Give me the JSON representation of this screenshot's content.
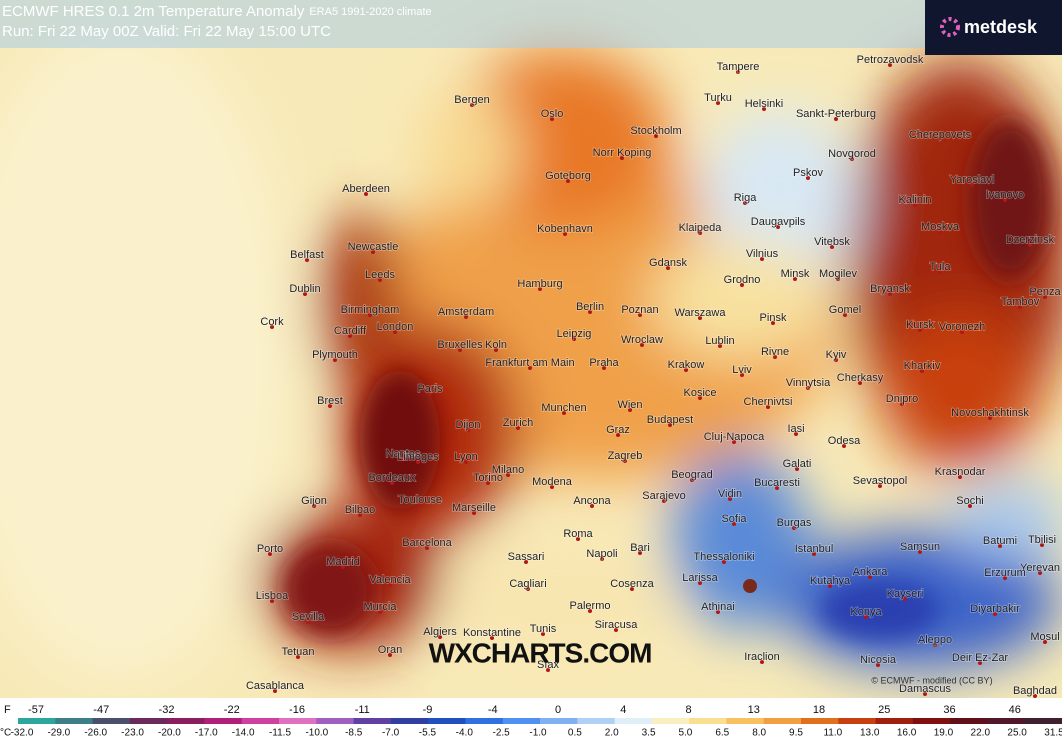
{
  "header": {
    "title": "ECMWF HRES 0.1 2m Temperature Anomaly",
    "subtitle": "ERA5 1991-2020 climate",
    "run": "Run: Fri 22 May 00Z Valid: Fri 22 May 15:00 UTC",
    "logo": "metdesk"
  },
  "watermark": "WXCHARTS.COM",
  "credit": "© ECMWF - modified (CC BY)",
  "cities": [
    "Tampere",
    "Petrozavodsk",
    "Bergen",
    "Oslo",
    "Turku",
    "Helsinki",
    "Sankt-Peterburg",
    "Stockholm",
    "Cherepovets",
    "Norr Koping",
    "Novgorod",
    "Aberdeen",
    "Goteborg",
    "Pskov",
    "Yaroslavl",
    "Ivanovo",
    "Kalinin",
    "Riga",
    "Daugavpils",
    "Newcastle",
    "Klaipeda",
    "Kobenhavn",
    "Moskva",
    "Vitebsk",
    "Vilnius",
    "Belfast",
    "Dzerzinsk",
    "Gdansk",
    "Minsk",
    "Mogilev",
    "Grodno",
    "Tula",
    "Leeds",
    "Hamburg",
    "Dublin",
    "Bryansk",
    "Penza",
    "Birmingham",
    "Amsterdam",
    "Berlin",
    "Poznan",
    "Warszawa",
    "Tambov",
    "Gomel",
    "Cork",
    "Cardiff",
    "London",
    "Leipzig",
    "Pinsk",
    "Kursk",
    "Voronezh",
    "Bruxelles",
    "Koln",
    "Wroclaw",
    "Lublin",
    "Plymouth",
    "Frankfurt am Main",
    "Praha",
    "Krakow",
    "Rivne",
    "Kyiv",
    "Lviv",
    "Kharkiv",
    "Paris",
    "Vinnytsia",
    "Cherkasy",
    "Kosice",
    "Brest",
    "Munchen",
    "Wien",
    "Dnipro",
    "Chernivtsi",
    "Novoshakhtinsk",
    "Budapest",
    "Graz",
    "Dijon",
    "Zurich",
    "Cluj-Napoca",
    "Iasi",
    "Odesa",
    "Lyon",
    "Zagreb",
    "Nantes",
    "Limoges",
    "Galati",
    "Krasnodar",
    "Beograd",
    "Milano",
    "Torino",
    "Bucaresti",
    "Sevastopol",
    "Bordeaux",
    "Toulouse",
    "Modena",
    "Marseille",
    "Gijon",
    "Bilbao",
    "Sochi",
    "Vidin",
    "Ancona",
    "Sarajevo",
    "Sofia",
    "Barcelona",
    "Roma",
    "Burgas",
    "Bari",
    "Istanbul",
    "Batumi",
    "Samsun",
    "Tbilisi",
    "Porto",
    "Napoli",
    "Sassari",
    "Thessaloniki",
    "Madrid",
    "Ankara",
    "Yerevan",
    "Erzurum",
    "Valencia",
    "Cagliari",
    "Cosenza",
    "Larissa",
    "Kutahya",
    "Lisboa",
    "Kayseri",
    "Palermo",
    "Murcia",
    "Athinai",
    "Konya",
    "Diyarbakir",
    "Sevilla",
    "Siracusa",
    "Algiers",
    "Tunis",
    "Konstantine",
    "Aleppo",
    "Mosul",
    "Tetuan",
    "Oran",
    "Sfax",
    "Iraclion",
    "Nicosia",
    "Deir Ez-Zar",
    "Casablanca",
    "Damascus",
    "Baghdad"
  ],
  "legend": {
    "f_unit": "F",
    "c_unit": "°C",
    "f_labels": [
      "-57",
      "-47",
      "-32",
      "-22",
      "-16",
      "-11",
      "-9",
      "-4",
      "0",
      "4",
      "8",
      "13",
      "18",
      "25",
      "36",
      "46"
    ],
    "c_labels": [
      "-32.0",
      "-29.0",
      "-26.0",
      "-23.0",
      "-20.0",
      "-17.0",
      "-14.0",
      "-11.5",
      "-10.0",
      "-8.5",
      "-7.0",
      "-5.5",
      "-4.0",
      "-2.5",
      "-1.0",
      "0.5",
      "2.0",
      "3.5",
      "5.0",
      "6.5",
      "8.0",
      "9.5",
      "11.0",
      "13.0",
      "16.0",
      "19.0",
      "22.0",
      "25.0",
      "31.5"
    ],
    "colors": [
      "#2ea6a0",
      "#3c7f8a",
      "#4a4f6e",
      "#6a2a5a",
      "#8a1f60",
      "#b0207a",
      "#d040a0",
      "#e070c0",
      "#a060c0",
      "#6040a0",
      "#3040a0",
      "#2050c0",
      "#3070e0",
      "#5090f0",
      "#80b0f0",
      "#b0d0f5",
      "#e0eef8",
      "#f8f0c0",
      "#f8e090",
      "#f8c060",
      "#f0a040",
      "#e07020",
      "#c84010",
      "#a02010",
      "#801010",
      "#601018",
      "#501828",
      "#402030"
    ]
  }
}
